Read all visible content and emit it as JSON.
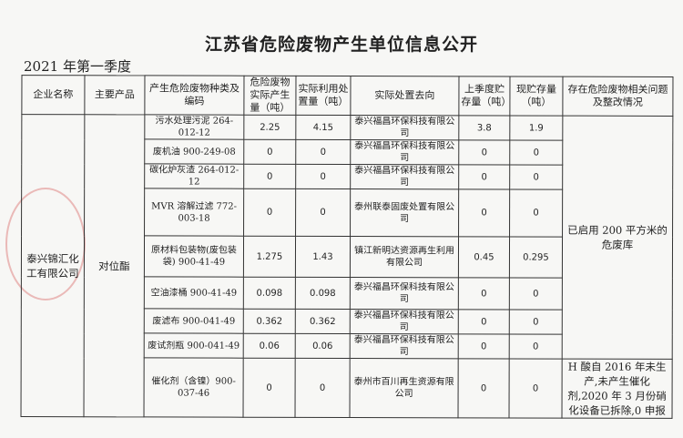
{
  "title": "江苏省危险废物产生单位信息公开",
  "subtitle": "2021 年第一季度",
  "headers": [
    "企业名称",
    "主要产品",
    "产生危险废物种类及编码",
    "危险废物实际产生量（吨）",
    "实际利用处置量（吨）",
    "实际处置去向",
    "上季度贮存量（吨）",
    "现贮存量（吨）",
    "存在危险废物相关问题及整改情况"
  ],
  "company": "泰兴锦汇化工有限公司",
  "product": "对位酯",
  "rows": [
    {
      "waste": "污水处理污泥 264-012-12",
      "produced": "2.25",
      "disposed": "4.15",
      "dest": "泰兴福昌环保科技有限公司",
      "prev": "3.8",
      "now": "1.9"
    },
    {
      "waste": "废机油 900-249-08",
      "produced": "0",
      "disposed": "0",
      "dest": "泰兴福昌环保科技有限公司",
      "prev": "0",
      "now": "0"
    },
    {
      "waste": "碳化炉灰渣 264-012-12",
      "produced": "0",
      "disposed": "0",
      "dest": "泰兴福昌环保科技有限公司",
      "prev": "0",
      "now": "0"
    },
    {
      "waste": "MVR 溶解过滤 772-003-18",
      "produced": "0",
      "disposed": "0",
      "dest": "泰州联泰固废处置有限公司",
      "prev": "0",
      "now": "0"
    },
    {
      "waste": "原材料包装物(废包装袋) 900-41-49",
      "produced": "1.275",
      "disposed": "1.43",
      "dest": "镇江新明达资源再生利用有限公司",
      "prev": "0.45",
      "now": "0.295"
    },
    {
      "waste": "空油漆桶 900-41-49",
      "produced": "0.098",
      "disposed": "0.098",
      "dest": "泰兴福昌环保科技有限公司",
      "prev": "0",
      "now": "0"
    },
    {
      "waste": "废滤布 900-041-49",
      "produced": "0.362",
      "disposed": "0.362",
      "dest": "泰兴福昌环保科技有限公司",
      "prev": "0",
      "now": "0"
    },
    {
      "waste": "废试剂瓶 900-041-49",
      "produced": "0.06",
      "disposed": "0.06",
      "dest": "泰兴福昌环保科技有限公司",
      "prev": "0",
      "now": "0"
    },
    {
      "waste": "催化剂（含镍）900-037-46",
      "produced": "0",
      "disposed": "0",
      "dest": "泰州市百川再生资源有限公司",
      "prev": "0",
      "now": "0"
    }
  ],
  "note1": "已启用 200 平方米的危废库",
  "note2": "H 酸自 2016 年未生产,未产生催化剂,2020 年 3 月份硝化设备已拆除,0 申报"
}
